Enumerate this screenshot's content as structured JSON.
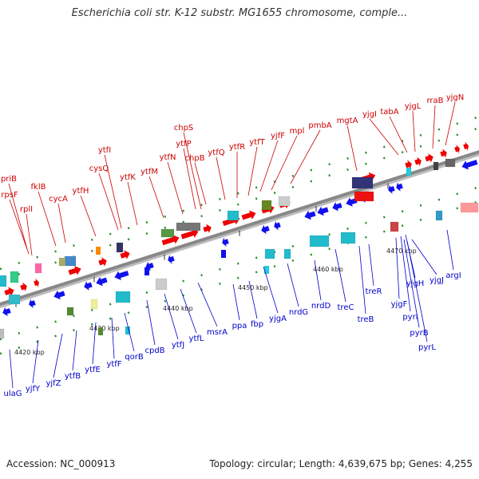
{
  "title": "Escherichia coli str. K-12 substr. MG1655 chromosome, comple...",
  "footer": {
    "accession": "Accession: NC_000913",
    "summary": "Topology: circular; Length: 4,639,675 bp; Genes: 4,255"
  },
  "colors": {
    "forward_label": "#cc0000",
    "reverse_label": "#0000cc",
    "backbone": "#888888",
    "forward_arrow": "#ee0000",
    "reverse_arrow": "#1111ee"
  },
  "ticks": [
    "4420 kbp",
    "4430 kbp",
    "4440 kbp",
    "4450 kbp",
    "4460 kbp",
    "4470 kbp"
  ],
  "forward_genes": [
    "priB",
    "rpsF",
    "rplI",
    "fklB",
    "cycA",
    "ytfH",
    "cysQ",
    "ytfI",
    "ytfK",
    "ytfM",
    "ytfN",
    "ytfP",
    "chpS",
    "chpB",
    "ytfQ",
    "ytfR",
    "ytfT",
    "yjfF",
    "mpl",
    "pmbA",
    "mgtA",
    "yjgI",
    "tabA",
    "yjgL",
    "rraB",
    "yjgN"
  ],
  "reverse_genes": [
    "ulaG",
    "yjfY",
    "yjfZ",
    "ytfB",
    "ytfE",
    "ytfF",
    "qorB",
    "cpdB",
    "ytfJ",
    "ytfL",
    "msrA",
    "ppa",
    "fbp",
    "yjgA",
    "nrdG",
    "nrdD",
    "treC",
    "treB",
    "treR",
    "yjgF",
    "pyrI",
    "yjgH",
    "pyrB",
    "pyrL",
    "yjgJ",
    "argI"
  ]
}
